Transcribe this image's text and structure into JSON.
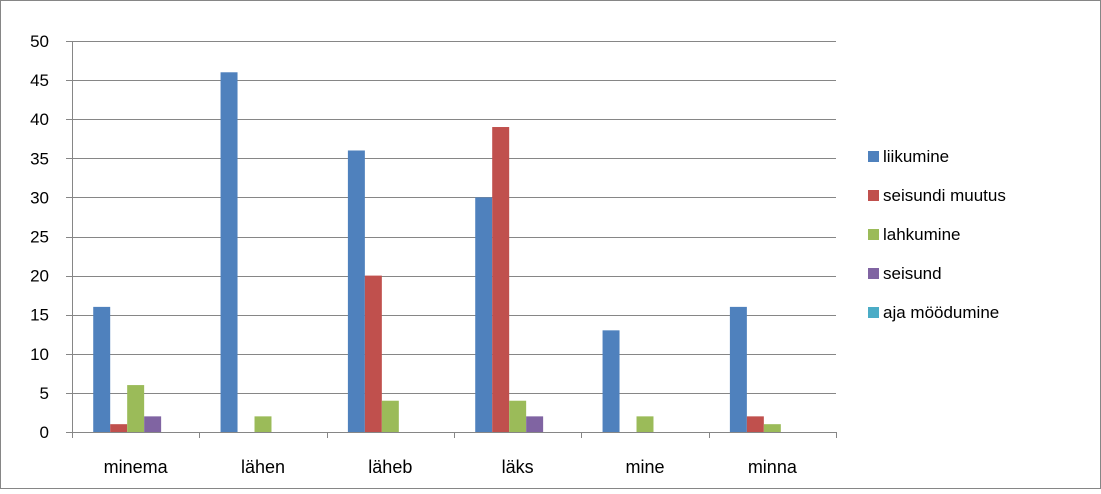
{
  "chart_data": {
    "type": "bar",
    "title": "",
    "xlabel": "",
    "ylabel": "",
    "categories": [
      "minema",
      "lähen",
      "läheb",
      "läks",
      "mine",
      "minna"
    ],
    "ylim": [
      0,
      50
    ],
    "yticks": [
      0,
      5,
      10,
      15,
      20,
      25,
      30,
      35,
      40,
      45,
      50
    ],
    "ytick_labels": [
      "0",
      "5",
      "10",
      "15",
      "20",
      "25",
      "30",
      "35",
      "40",
      "45",
      "50"
    ],
    "grid": true,
    "legend_position": "right",
    "series": [
      {
        "name": "liikumine",
        "color": "#4f81bd",
        "values": [
          16,
          46,
          36,
          30,
          13,
          16
        ]
      },
      {
        "name": "seisundi muutus",
        "color": "#c0504d",
        "values": [
          1,
          0,
          20,
          39,
          0,
          2
        ]
      },
      {
        "name": "lahkumine",
        "color": "#9bbb59",
        "values": [
          6,
          2,
          4,
          4,
          2,
          1
        ]
      },
      {
        "name": "seisund",
        "color": "#8064a2",
        "values": [
          2,
          0,
          0,
          2,
          0,
          0
        ]
      },
      {
        "name": "aja möödumine",
        "color": "#4bacc6",
        "values": [
          0,
          0,
          0,
          0,
          0,
          0
        ]
      }
    ]
  }
}
